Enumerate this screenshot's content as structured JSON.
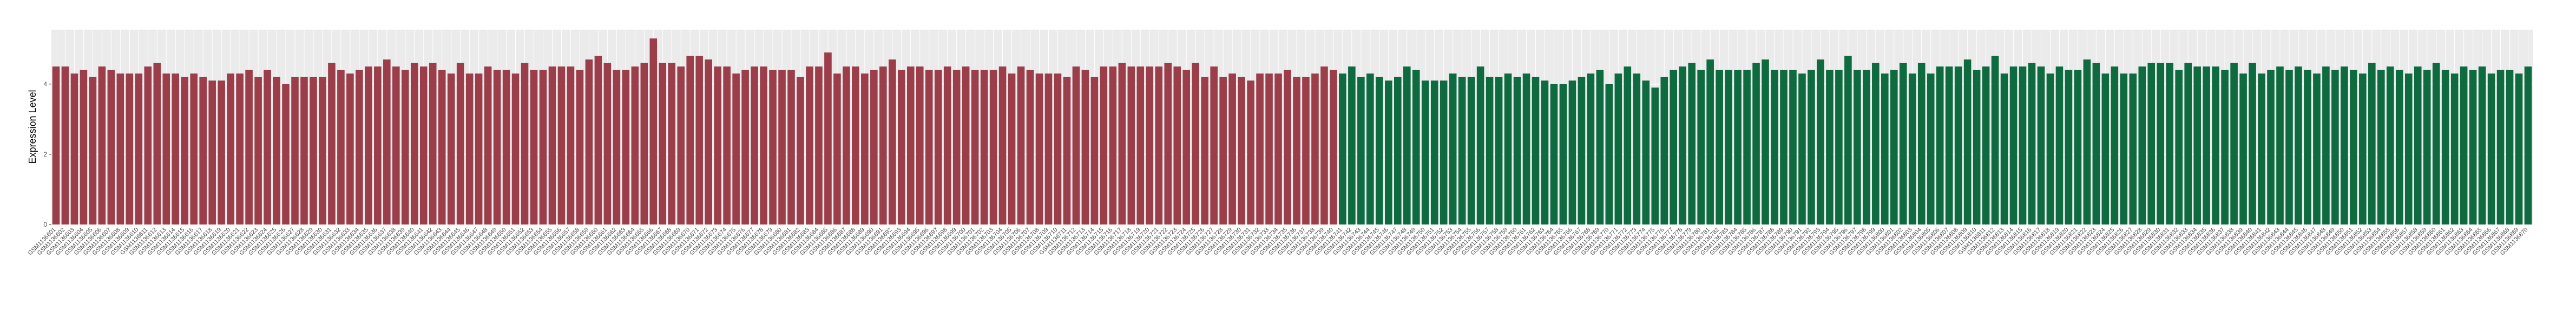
{
  "chart_data": {
    "type": "bar",
    "y_label": "Expression Level",
    "ylim": [
      0,
      5.55
    ],
    "yticks": [
      0,
      2,
      4
    ],
    "grid": true,
    "series": [
      {
        "color": "#9b3e4a",
        "categories": [
          "GSM1136601",
          "GSM1136602",
          "GSM1136603",
          "GSM1136604",
          "GSM1136605",
          "GSM1136606",
          "GSM1136607",
          "GSM1136608",
          "GSM1136609",
          "GSM1136610",
          "GSM1136611",
          "GSM1136612",
          "GSM1136613",
          "GSM1136614",
          "GSM1136615",
          "GSM1136616",
          "GSM1136617",
          "GSM1136618",
          "GSM1136619",
          "GSM1136620",
          "GSM1136621",
          "GSM1136622",
          "GSM1136623",
          "GSM1136624",
          "GSM1136625",
          "GSM1136626",
          "GSM1136627",
          "GSM1136628",
          "GSM1136629",
          "GSM1136630",
          "GSM1136631",
          "GSM1136632",
          "GSM1136633",
          "GSM1136634",
          "GSM1136635",
          "GSM1136636",
          "GSM1136637",
          "GSM1136638",
          "GSM1136639",
          "GSM1136640",
          "GSM1136641",
          "GSM1136642",
          "GSM1136643",
          "GSM1136644",
          "GSM1136645",
          "GSM1136646",
          "GSM1136647",
          "GSM1136648",
          "GSM1136649",
          "GSM1136650",
          "GSM1136651",
          "GSM1136652",
          "GSM1136653",
          "GSM1136654",
          "GSM1136655",
          "GSM1136656",
          "GSM1136657",
          "GSM1136658",
          "GSM1136659",
          "GSM1136660",
          "GSM1136661",
          "GSM1136662",
          "GSM1136663",
          "GSM1136664",
          "GSM1136665",
          "GSM1136666",
          "GSM1136667",
          "GSM1136668",
          "GSM1136669",
          "GSM1136670",
          "GSM1136671",
          "GSM1136672",
          "GSM1136673",
          "GSM1136674",
          "GSM1136675",
          "GSM1136676",
          "GSM1136677",
          "GSM1136678",
          "GSM1136679",
          "GSM1136680",
          "GSM1136681",
          "GSM1136682",
          "GSM1136683",
          "GSM1136684",
          "GSM1136685",
          "GSM1136686",
          "GSM1136687",
          "GSM1136688",
          "GSM1136689",
          "GSM1136690",
          "GSM1136691",
          "GSM1136692",
          "GSM1136693",
          "GSM1136694",
          "GSM1136695",
          "GSM1136696",
          "GSM1136697",
          "GSM1136698",
          "GSM1136699",
          "GSM1136700",
          "GSM1136701",
          "GSM1136702",
          "GSM1136703",
          "GSM1136704",
          "GSM1136705",
          "GSM1136706",
          "GSM1136707",
          "GSM1136708",
          "GSM1136709",
          "GSM1136710",
          "GSM1136711",
          "GSM1136712",
          "GSM1136713",
          "GSM1136714",
          "GSM1136715",
          "GSM1136716",
          "GSM1136717",
          "GSM1136718",
          "GSM1136719",
          "GSM1136720",
          "GSM1136721",
          "GSM1136722",
          "GSM1136723",
          "GSM1136724",
          "GSM1136725",
          "GSM1136726",
          "GSM1136727",
          "GSM1136728",
          "GSM1136729",
          "GSM1136730",
          "GSM1136731",
          "GSM1136732",
          "GSM1136733",
          "GSM1136734",
          "GSM1136735",
          "GSM1136736",
          "GSM1136737",
          "GSM1136738",
          "GSM1136739",
          "GSM1136740"
        ],
        "values": [
          4.5,
          4.5,
          4.3,
          4.4,
          4.2,
          4.5,
          4.4,
          4.3,
          4.3,
          4.3,
          4.5,
          4.6,
          4.3,
          4.3,
          4.2,
          4.3,
          4.2,
          4.1,
          4.1,
          4.3,
          4.3,
          4.4,
          4.2,
          4.4,
          4.2,
          4.0,
          4.2,
          4.2,
          4.2,
          4.2,
          4.6,
          4.4,
          4.3,
          4.4,
          4.5,
          4.5,
          4.7,
          4.5,
          4.4,
          4.6,
          4.5,
          4.6,
          4.4,
          4.3,
          4.6,
          4.3,
          4.3,
          4.5,
          4.4,
          4.4,
          4.3,
          4.6,
          4.4,
          4.4,
          4.5,
          4.5,
          4.5,
          4.4,
          4.7,
          4.8,
          4.6,
          4.4,
          4.4,
          4.5,
          4.6,
          5.3,
          4.6,
          4.6,
          4.5,
          4.8,
          4.8,
          4.7,
          4.5,
          4.5,
          4.3,
          4.4,
          4.5,
          4.5,
          4.4,
          4.4,
          4.4,
          4.2,
          4.5,
          4.5,
          4.9,
          4.3,
          4.5,
          4.5,
          4.3,
          4.4,
          4.5,
          4.7,
          4.4,
          4.5,
          4.5,
          4.4,
          4.4,
          4.5,
          4.4,
          4.5,
          4.4,
          4.4,
          4.4,
          4.5,
          4.3,
          4.5,
          4.4,
          4.3,
          4.3,
          4.3,
          4.2,
          4.5,
          4.4,
          4.2,
          4.5,
          4.5,
          4.6,
          4.5,
          4.5,
          4.5,
          4.5,
          4.6,
          4.5,
          4.4,
          4.6,
          4.2,
          4.5,
          4.2,
          4.3,
          4.2,
          4.1,
          4.3,
          4.3,
          4.3,
          4.4,
          4.2,
          4.2,
          4.3,
          4.5,
          4.4
        ]
      },
      {
        "color": "#0e6b40",
        "categories": [
          "GSM1136741",
          "GSM1136742",
          "GSM1136743",
          "GSM1136744",
          "GSM1136745",
          "GSM1136746",
          "GSM1136747",
          "GSM1136748",
          "GSM1136749",
          "GSM1136750",
          "GSM1136751",
          "GSM1136752",
          "GSM1136753",
          "GSM1136754",
          "GSM1136755",
          "GSM1136756",
          "GSM1136757",
          "GSM1136758",
          "GSM1136759",
          "GSM1136760",
          "GSM1136761",
          "GSM1136762",
          "GSM1136763",
          "GSM1136764",
          "GSM1136765",
          "GSM1136766",
          "GSM1136767",
          "GSM1136768",
          "GSM1136769",
          "GSM1136770",
          "GSM1136771",
          "GSM1136772",
          "GSM1136773",
          "GSM1136774",
          "GSM1136775",
          "GSM1136776",
          "GSM1136777",
          "GSM1136778",
          "GSM1136779",
          "GSM1136780",
          "GSM1136781",
          "GSM1136782",
          "GSM1136783",
          "GSM1136784",
          "GSM1136785",
          "GSM1136786",
          "GSM1136787",
          "GSM1136788",
          "GSM1136789",
          "GSM1136790",
          "GSM1136791",
          "GSM1136792",
          "GSM1136793",
          "GSM1136794",
          "GSM1136795",
          "GSM1136796",
          "GSM1136797",
          "GSM1136798",
          "GSM1136799",
          "GSM1136800",
          "GSM1136801",
          "GSM1136802",
          "GSM1136803",
          "GSM1136804",
          "GSM1136805",
          "GSM1136806",
          "GSM1136807",
          "GSM1136808",
          "GSM1136809",
          "GSM1136810",
          "GSM1136811",
          "GSM1136812",
          "GSM1136813",
          "GSM1136814",
          "GSM1136815",
          "GSM1136816",
          "GSM1136817",
          "GSM1136818",
          "GSM1136819",
          "GSM1136820",
          "GSM1136821",
          "GSM1136822",
          "GSM1136823",
          "GSM1136824",
          "GSM1136825",
          "GSM1136826",
          "GSM1136827",
          "GSM1136828",
          "GSM1136829",
          "GSM1136830",
          "GSM1136831",
          "GSM1136832",
          "GSM1136833",
          "GSM1136834",
          "GSM1136835",
          "GSM1136836",
          "GSM1136837",
          "GSM1136838",
          "GSM1136839",
          "GSM1136840",
          "GSM1136841",
          "GSM1136842",
          "GSM1136843",
          "GSM1136844",
          "GSM1136845",
          "GSM1136846",
          "GSM1136847",
          "GSM1136848",
          "GSM1136849",
          "GSM1136850",
          "GSM1136851",
          "GSM1136852",
          "GSM1136853",
          "GSM1136854",
          "GSM1136855",
          "GSM1136856",
          "GSM1136857",
          "GSM1136858",
          "GSM1136859",
          "GSM1136860",
          "GSM1136861",
          "GSM1136862",
          "GSM1136863",
          "GSM1136864",
          "GSM1136865",
          "GSM1136866",
          "GSM1136867",
          "GSM1136868",
          "GSM1136869",
          "GSM1136870"
        ],
        "values": [
          4.3,
          4.5,
          4.2,
          4.3,
          4.2,
          4.1,
          4.2,
          4.5,
          4.4,
          4.1,
          4.1,
          4.1,
          4.3,
          4.2,
          4.2,
          4.5,
          4.2,
          4.2,
          4.3,
          4.2,
          4.3,
          4.2,
          4.1,
          4.0,
          4.0,
          4.1,
          4.2,
          4.3,
          4.4,
          4.0,
          4.3,
          4.5,
          4.3,
          4.1,
          3.9,
          4.2,
          4.4,
          4.5,
          4.6,
          4.4,
          4.7,
          4.4,
          4.4,
          4.4,
          4.4,
          4.6,
          4.7,
          4.4,
          4.4,
          4.4,
          4.3,
          4.4,
          4.7,
          4.4,
          4.4,
          4.8,
          4.4,
          4.4,
          4.6,
          4.3,
          4.4,
          4.6,
          4.3,
          4.6,
          4.3,
          4.5,
          4.5,
          4.5,
          4.7,
          4.4,
          4.5,
          4.8,
          4.3,
          4.5,
          4.5,
          4.6,
          4.5,
          4.3,
          4.5,
          4.4,
          4.4,
          4.7,
          4.6,
          4.3,
          4.5,
          4.3,
          4.3,
          4.5,
          4.6,
          4.6,
          4.6,
          4.4,
          4.6,
          4.5,
          4.5,
          4.5,
          4.4,
          4.6,
          4.3,
          4.6,
          4.3,
          4.4,
          4.5,
          4.4,
          4.5,
          4.4,
          4.3,
          4.5,
          4.4,
          4.5,
          4.4,
          4.3,
          4.6,
          4.4,
          4.5,
          4.4,
          4.3,
          4.5,
          4.4,
          4.6,
          4.4,
          4.3,
          4.5,
          4.4,
          4.5,
          4.3,
          4.4,
          4.4,
          4.3,
          4.5
        ]
      }
    ]
  }
}
